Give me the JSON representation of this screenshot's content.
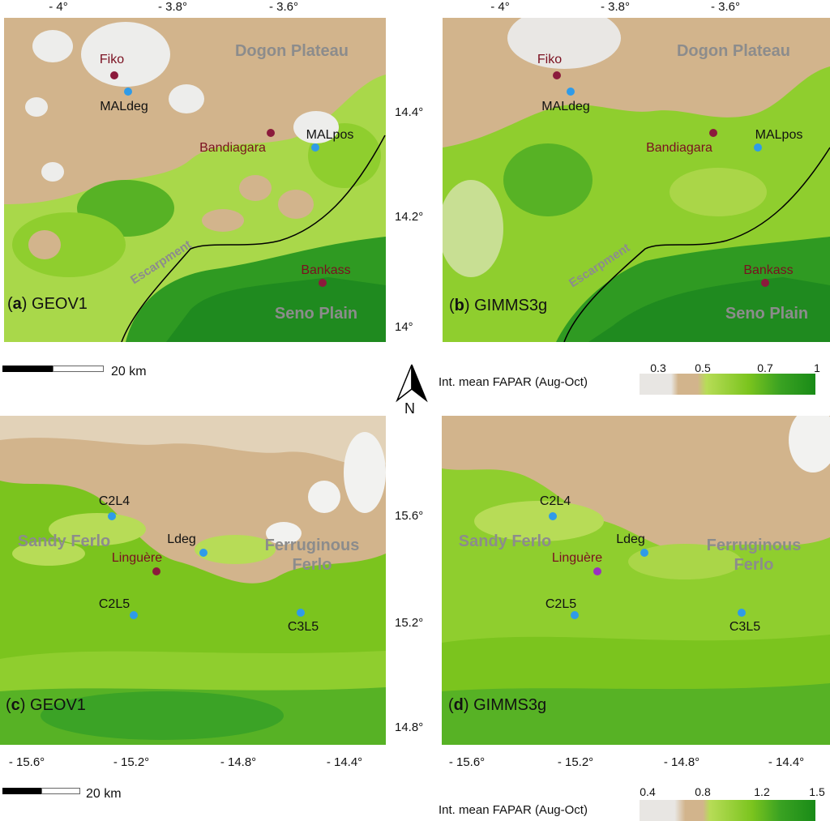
{
  "colors": {
    "bare": "#d2b48c",
    "sparse": "#e8e6e3",
    "green_light": "#b7dc57",
    "green_mid": "#7bc41e",
    "green_dark": "#229022",
    "town": "#8b1a3c",
    "station": "#2f9be8",
    "region": "#8c8c8c"
  },
  "top_axis_ticks": [
    "- 4°",
    "- 3.8°",
    "- 3.6°"
  ],
  "mid_lat_ticks": [
    "14.4°",
    "14.2°",
    "14°"
  ],
  "bottom_lat_ticks": [
    "15.6°",
    "15.2°",
    "14.8°"
  ],
  "bottom_axis_ticks": [
    "- 15.6°",
    "- 15.2°",
    "- 14.8°",
    "- 14.4°"
  ],
  "panels": {
    "a": {
      "letter": "a",
      "product": "GEOV1"
    },
    "b": {
      "letter": "b",
      "product": "GIMMS3g"
    },
    "c": {
      "letter": "c",
      "product": "GEOV1"
    },
    "d": {
      "letter": "d",
      "product": "GIMMS3g"
    }
  },
  "top_region_labels": {
    "plateau": "Dogon Plateau",
    "plain": "Seno Plain",
    "escarpment": "Escarpment"
  },
  "top_sites": {
    "fiko": "Fiko",
    "maldeg": "MALdeg",
    "bandiagara": "Bandiagara",
    "malpos": "MALpos",
    "bankass": "Bankass"
  },
  "bottom_region_labels": {
    "sandy": "Sandy Ferlo",
    "ferruginous": "Ferruginous\nFerlo"
  },
  "bottom_sites": {
    "c2l4": "C2L4",
    "lineguere": "Linguère",
    "lineguere_label": "Linguère",
    "ldeg": "Ldeg",
    "c2l5": "C2L5",
    "c3l5": "C3L5"
  },
  "scale": {
    "top": "20  km",
    "bottom": "20  km"
  },
  "north": "N",
  "legend_top": {
    "title": "Int. mean FAPAR (Aug-Oct)",
    "ticks": [
      "0.3",
      "0.5",
      "0.7",
      "1"
    ]
  },
  "legend_bottom": {
    "title": "Int. mean FAPAR (Aug-Oct)",
    "ticks": [
      "0.4",
      "0.8",
      "1.2",
      "1.5"
    ]
  }
}
